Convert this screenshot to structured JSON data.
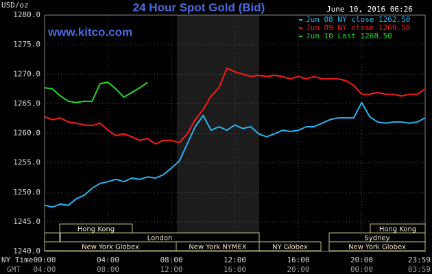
{
  "chart_data": {
    "type": "line",
    "title": "24 Hour Spot Gold (Bid)",
    "subtitle": "June 10, 2016 06:26",
    "watermark": "www.kitco.com",
    "y_label": "USD/oz",
    "x_label": "NY Time",
    "x2_label": "GMT",
    "x": [
      0,
      0.5,
      1,
      1.5,
      2,
      2.5,
      3,
      3.5,
      4,
      4.5,
      5,
      5.5,
      6,
      6.5,
      7,
      7.5,
      8,
      8.5,
      9,
      9.5,
      10,
      10.5,
      11,
      11.5,
      12,
      12.5,
      13,
      13.5,
      14,
      14.5,
      15,
      15.5,
      16,
      16.5,
      17,
      17.5,
      18,
      18.5,
      19,
      19.5,
      20,
      20.5,
      21,
      21.5,
      22,
      22.5,
      23,
      23.5,
      24
    ],
    "series": [
      {
        "name": "Jun 08 NY close 1262.50",
        "color": "#29b6f6",
        "values": [
          1247.8,
          1247.5,
          1248.0,
          1247.8,
          1248.9,
          1249.5,
          1250.7,
          1251.5,
          1251.8,
          1252.2,
          1251.8,
          1252.4,
          1252.2,
          1252.6,
          1252.4,
          1253.0,
          1254.1,
          1255.3,
          1258.2,
          1261.1,
          1263.0,
          1260.5,
          1261.1,
          1260.5,
          1261.4,
          1260.8,
          1261.1,
          1259.9,
          1259.4,
          1259.9,
          1260.5,
          1260.3,
          1260.5,
          1261.1,
          1261.1,
          1261.7,
          1262.3,
          1262.6,
          1262.6,
          1262.6,
          1265.2,
          1262.8,
          1261.9,
          1261.7,
          1261.9,
          1261.9,
          1261.7,
          1261.9,
          1262.6
        ]
      },
      {
        "name": "Jun 09 NY close 1269.50",
        "color": "#ff1a1a",
        "values": [
          1262.8,
          1262.3,
          1262.6,
          1261.9,
          1261.7,
          1261.4,
          1261.3,
          1261.7,
          1260.5,
          1259.6,
          1259.9,
          1259.4,
          1258.8,
          1259.1,
          1258.2,
          1258.8,
          1258.8,
          1258.4,
          1259.9,
          1262.3,
          1264.0,
          1266.3,
          1267.7,
          1271.0,
          1270.4,
          1270.0,
          1269.6,
          1269.8,
          1269.6,
          1269.8,
          1269.6,
          1269.2,
          1269.6,
          1269.2,
          1269.6,
          1269.2,
          1269.2,
          1269.2,
          1268.9,
          1268.1,
          1266.6,
          1266.6,
          1266.9,
          1266.6,
          1266.6,
          1266.3,
          1266.6,
          1266.6,
          1267.5
        ]
      },
      {
        "name": "Jun 10 Last 1268.50",
        "color": "#22dd22",
        "values": [
          1267.7,
          1267.5,
          1266.3,
          1265.4,
          1265.2,
          1265.4,
          1265.4,
          1268.4,
          1268.6,
          1267.5,
          1266.1,
          1266.9,
          1267.7,
          1268.6,
          null,
          null,
          null,
          null,
          null,
          null,
          null,
          null,
          null,
          null,
          null,
          null,
          null,
          null,
          null,
          null,
          null,
          null,
          null,
          null,
          null,
          null,
          null,
          null,
          null,
          null,
          null,
          null,
          null,
          null,
          null,
          null,
          null,
          null,
          null
        ]
      }
    ],
    "xlim": [
      0,
      24
    ],
    "xticks": [
      {
        "value": 0,
        "label": "00:00"
      },
      {
        "value": 4,
        "label": "04:00"
      },
      {
        "value": 8,
        "label": "08:00"
      },
      {
        "value": 12,
        "label": "12:00"
      },
      {
        "value": 16,
        "label": "16:00"
      },
      {
        "value": 20,
        "label": "20:00"
      },
      {
        "value": 24,
        "label": "23:59"
      }
    ],
    "x2_ticklabels": [
      "04:00",
      "08:00",
      "12:00",
      "16:00",
      "20:00",
      "00:00",
      "03:59"
    ],
    "ylim": [
      1240,
      1280
    ],
    "yticks": [
      {
        "value": 1240,
        "label": "1240.0"
      },
      {
        "value": 1245,
        "label": "1245.0"
      },
      {
        "value": 1250,
        "label": "1250.0"
      },
      {
        "value": 1255,
        "label": "1255.0"
      },
      {
        "value": 1260,
        "label": "1260.0"
      },
      {
        "value": 1265,
        "label": "1265.0"
      },
      {
        "value": 1270,
        "label": "1270.0"
      },
      {
        "value": 1275,
        "label": "1275.0"
      },
      {
        "value": 1280,
        "label": "1280.0"
      }
    ],
    "grid": true,
    "legend": "top-right",
    "sessions": [
      "Hong Kong",
      "Hong Kong",
      "London",
      "Sydney",
      "New York Globex",
      "New York NYMEX",
      "NY Globex",
      "New York Globex"
    ]
  }
}
